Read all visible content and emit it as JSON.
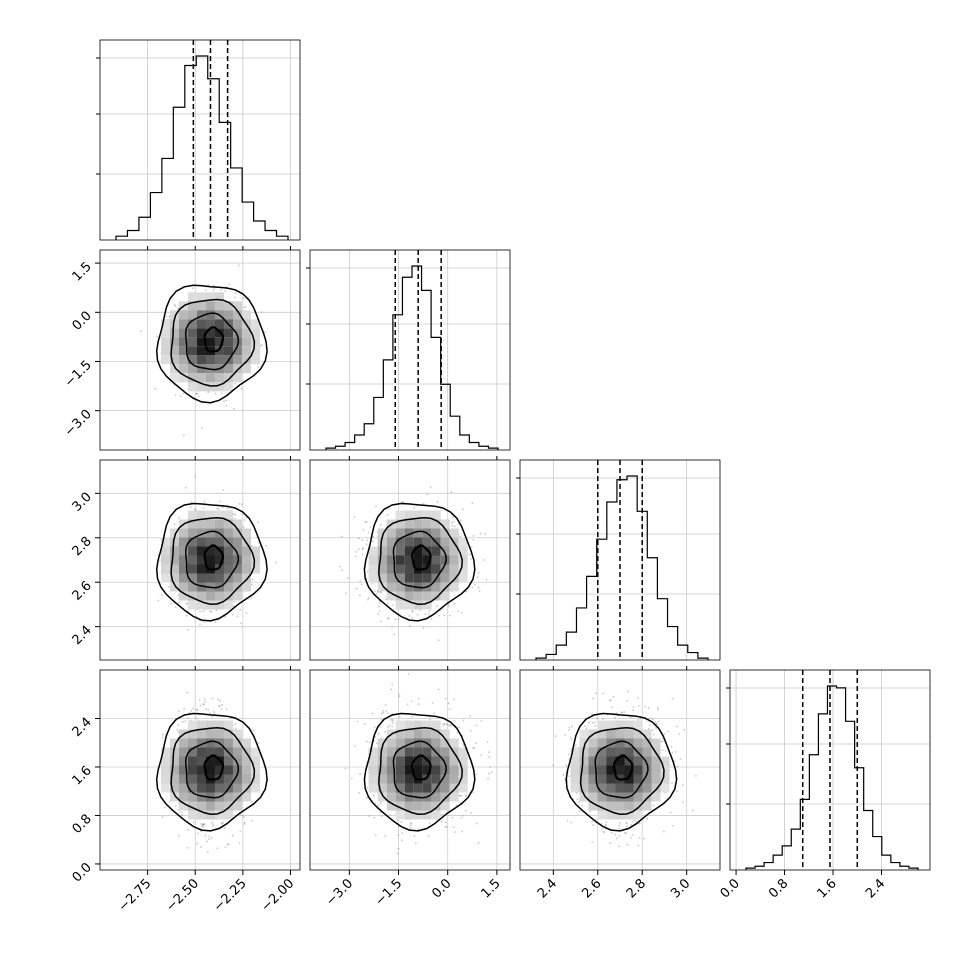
{
  "chart_data": {
    "type": "corner",
    "parameters": [
      {
        "range": [
          -3.0,
          -1.95
        ],
        "ticks": [
          -2.75,
          -2.5,
          -2.25,
          -2.0
        ],
        "tick_labels": [
          "−2.75",
          "−2.50",
          "−2.25",
          "−2.00"
        ],
        "mean": -2.42,
        "sd": 0.09,
        "quantiles": [
          -2.51,
          -2.42,
          -2.33
        ],
        "hist_x": [
          -2.75,
          -2.5,
          -2.25,
          -2.0
        ],
        "hist_counts": [
          2,
          5,
          12,
          25,
          43,
          70,
          92,
          97,
          85,
          62,
          38,
          20,
          10,
          5,
          2
        ]
      },
      {
        "range": [
          -4.2,
          1.9
        ],
        "ticks": [
          -3.0,
          -1.5,
          0.0,
          1.5
        ],
        "tick_labels": [
          "−3.0",
          "−1.5",
          "0.0",
          "1.5"
        ],
        "mean": -0.9,
        "sd": 0.68,
        "quantiles": [
          -1.6,
          -0.9,
          -0.2
        ],
        "hist_counts": [
          1,
          2,
          4,
          8,
          14,
          28,
          48,
          72,
          92,
          98,
          85,
          60,
          35,
          18,
          8,
          4,
          2,
          1
        ]
      },
      {
        "range": [
          2.25,
          3.15
        ],
        "ticks": [
          2.4,
          2.6,
          2.8,
          3.0
        ],
        "tick_labels": [
          "2.4",
          "2.6",
          "2.8",
          "3.0"
        ],
        "mean": 2.7,
        "sd": 0.1,
        "quantiles": [
          2.6,
          2.7,
          2.8
        ],
        "hist_counts": [
          1,
          3,
          8,
          15,
          28,
          45,
          65,
          85,
          97,
          99,
          80,
          55,
          33,
          18,
          8,
          4,
          1
        ]
      },
      {
        "range": [
          -0.1,
          3.2
        ],
        "ticks": [
          0.0,
          0.8,
          1.6,
          2.4
        ],
        "tick_labels": [
          "0.0",
          "0.8",
          "1.6",
          "2.4"
        ],
        "mean": 1.55,
        "sd": 0.42,
        "quantiles": [
          1.1,
          1.55,
          2.0
        ],
        "hist_counts": [
          1,
          2,
          4,
          8,
          13,
          22,
          38,
          62,
          84,
          99,
          98,
          80,
          55,
          32,
          18,
          8,
          4,
          2,
          1
        ]
      }
    ],
    "grid": true,
    "contour_levels": 4
  }
}
